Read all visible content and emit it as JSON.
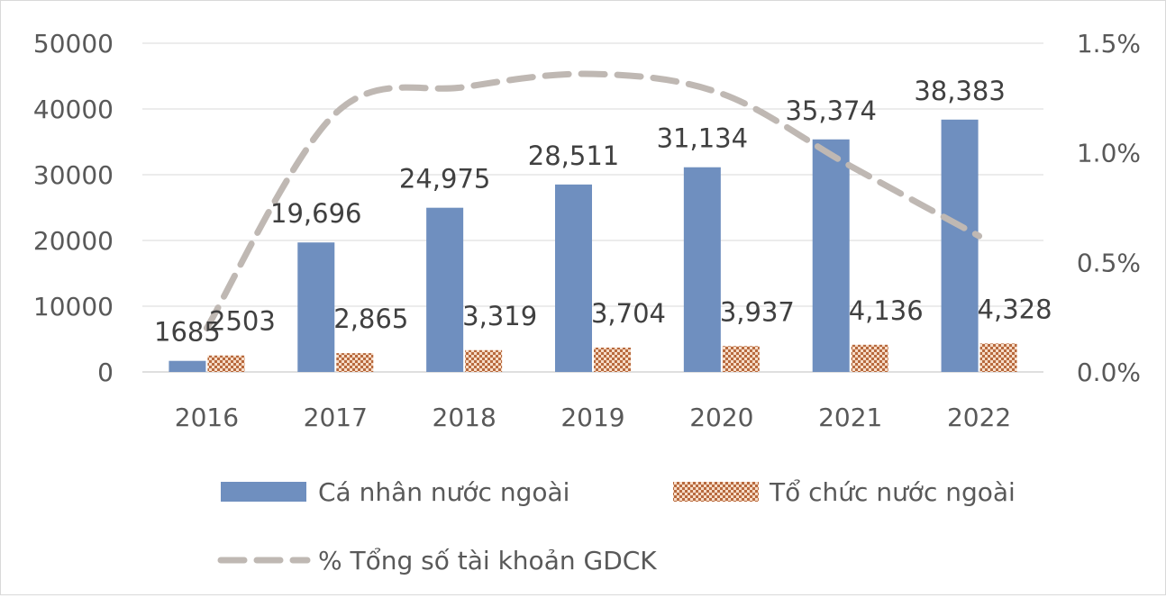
{
  "chart_data": {
    "type": "bar",
    "title": "",
    "categories": [
      "2016",
      "2017",
      "2018",
      "2019",
      "2020",
      "2021",
      "2022"
    ],
    "series": [
      {
        "name": "Cá nhân nước ngoài",
        "kind": "bar",
        "axis": "left",
        "color": "#6f8fbf",
        "values": [
          1685,
          19696,
          24975,
          28511,
          31134,
          35374,
          38383
        ],
        "labels": [
          "1685",
          "19,696",
          "24,975",
          "28,511",
          "31,134",
          "35,374",
          "38,383"
        ]
      },
      {
        "name": "Tổ chức nước ngoài",
        "kind": "bar",
        "axis": "left",
        "pattern": "brown-checker",
        "color": "#c0784a",
        "values": [
          2503,
          2865,
          3319,
          3704,
          3937,
          4136,
          4328
        ],
        "labels": [
          "2503",
          "2,865",
          "3,319",
          "3,704",
          "3,937",
          "4,136",
          "4,328"
        ]
      },
      {
        "name": "% Tổng số tài khoản GDCK",
        "kind": "line",
        "style": "dashed",
        "axis": "right",
        "color": "#bfb8b3",
        "values": [
          0.2,
          1.18,
          1.3,
          1.36,
          1.27,
          0.94,
          0.62
        ]
      }
    ],
    "y_left": {
      "ylim": [
        0,
        50000
      ],
      "ticks": [
        0,
        10000,
        20000,
        30000,
        40000,
        50000
      ],
      "tick_labels": [
        "0",
        "10000",
        "20000",
        "30000",
        "40000",
        "50000"
      ]
    },
    "y_right": {
      "ylim": [
        0,
        1.5
      ],
      "ticks": [
        0,
        0.5,
        1.0,
        1.5
      ],
      "tick_labels": [
        "0.0%",
        "0.5%",
        "1.0%",
        "1.5%"
      ]
    },
    "grid": true,
    "legend_position": "bottom"
  }
}
